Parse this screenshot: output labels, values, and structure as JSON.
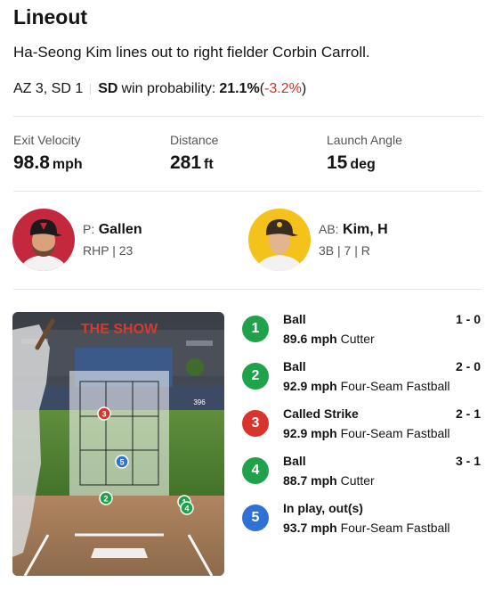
{
  "header": {
    "title": "Lineout",
    "description": "Ha-Seong Kim lines out to right fielder Corbin Carroll."
  },
  "win_probability": {
    "score": "AZ 3, SD 1",
    "team": "SD",
    "label": "win probability:",
    "value": "21.1%",
    "open_paren": "(",
    "delta": "-3.2%",
    "close_paren": ")",
    "delta_color": "#d92d20"
  },
  "stats": [
    {
      "label": "Exit Velocity",
      "value": "98.8",
      "unit": "mph"
    },
    {
      "label": "Distance",
      "value": "281",
      "unit": "ft"
    },
    {
      "label": "Launch Angle",
      "value": "15",
      "unit": "deg"
    }
  ],
  "pitcher": {
    "role": "P:",
    "name": "Gallen",
    "detail": "RHP | 23",
    "avatar_icon": "pitcher-headshot-icon",
    "bg_color": "#c3283c"
  },
  "batter": {
    "role": "AB:",
    "name": "Kim, H",
    "detail": "3B | 7 | R",
    "avatar_icon": "batter-headshot-icon",
    "bg_color": "#f4c21b"
  },
  "field_view": {
    "stadium_sign": "THE SHOW",
    "scoreboard_text": "396"
  },
  "pitches": [
    {
      "num": "1",
      "result": "Ball",
      "count": "1 - 0",
      "speed": "89.6 mph",
      "type": "Cutter",
      "color": "#1fa24a"
    },
    {
      "num": "2",
      "result": "Ball",
      "count": "2 - 0",
      "speed": "92.9 mph",
      "type": "Four-Seam Fastball",
      "color": "#1fa24a"
    },
    {
      "num": "3",
      "result": "Called Strike",
      "count": "2 - 1",
      "speed": "92.9 mph",
      "type": "Four-Seam Fastball",
      "color": "#d8342b"
    },
    {
      "num": "4",
      "result": "Ball",
      "count": "3 - 1",
      "speed": "88.7 mph",
      "type": "Cutter",
      "color": "#1fa24a"
    },
    {
      "num": "5",
      "result": "In play, out(s)",
      "count": "",
      "speed": "93.7 mph",
      "type": "Four-Seam Fastball",
      "color": "#2f72d6"
    }
  ]
}
